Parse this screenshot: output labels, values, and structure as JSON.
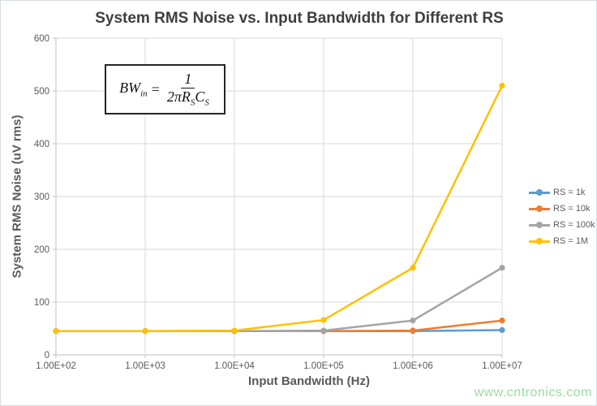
{
  "title": "System RMS Noise vs. Input Bandwidth for Different RS",
  "formula": {
    "lhs": "BW",
    "lhs_sub": "in",
    "equals": "=",
    "numerator": "1",
    "den_coeff": "2π",
    "den_r": "R",
    "den_r_sub": "S",
    "den_c": "C",
    "den_c_sub": "S"
  },
  "watermark": "www.cntronics.com",
  "colors": {
    "title_text": "#3f3f3f",
    "axis_text": "#595959",
    "gridline": "#d9d9d9",
    "axis_line": "#bfbfbf",
    "watermark_green": "#9cdc9c",
    "formula_border": "#262626"
  },
  "chart_data": {
    "type": "line",
    "title": "System RMS Noise vs. Input Bandwidth for Different RS",
    "xlabel": "Input Bandwidth (Hz)",
    "ylabel": "System RMS Noise (uV rms)",
    "x_scale": "log",
    "x_values": [
      100,
      1000,
      10000,
      100000,
      1000000,
      10000000
    ],
    "x_tick_labels": [
      "1.00E+02",
      "1.00E+03",
      "1.00E+04",
      "1.00E+05",
      "1.00E+06",
      "1.00E+07"
    ],
    "y_ticks": [
      0,
      100,
      200,
      300,
      400,
      500,
      600
    ],
    "ylim": [
      0,
      600
    ],
    "grid": true,
    "legend_position": "right",
    "marker": "circle",
    "series": [
      {
        "name": "RS = 1k",
        "color": "#5b9bd5",
        "values": [
          45,
          45,
          45,
          45,
          45,
          47
        ]
      },
      {
        "name": "RS = 10k",
        "color": "#ed7d31",
        "values": [
          45,
          45,
          45,
          45,
          46,
          65
        ]
      },
      {
        "name": "RS = 100k",
        "color": "#a5a5a5",
        "values": [
          45,
          45,
          45,
          46,
          65,
          165
        ]
      },
      {
        "name": "RS = 1M",
        "color": "#ffc000",
        "values": [
          45,
          45,
          46,
          66,
          165,
          510
        ]
      }
    ]
  }
}
